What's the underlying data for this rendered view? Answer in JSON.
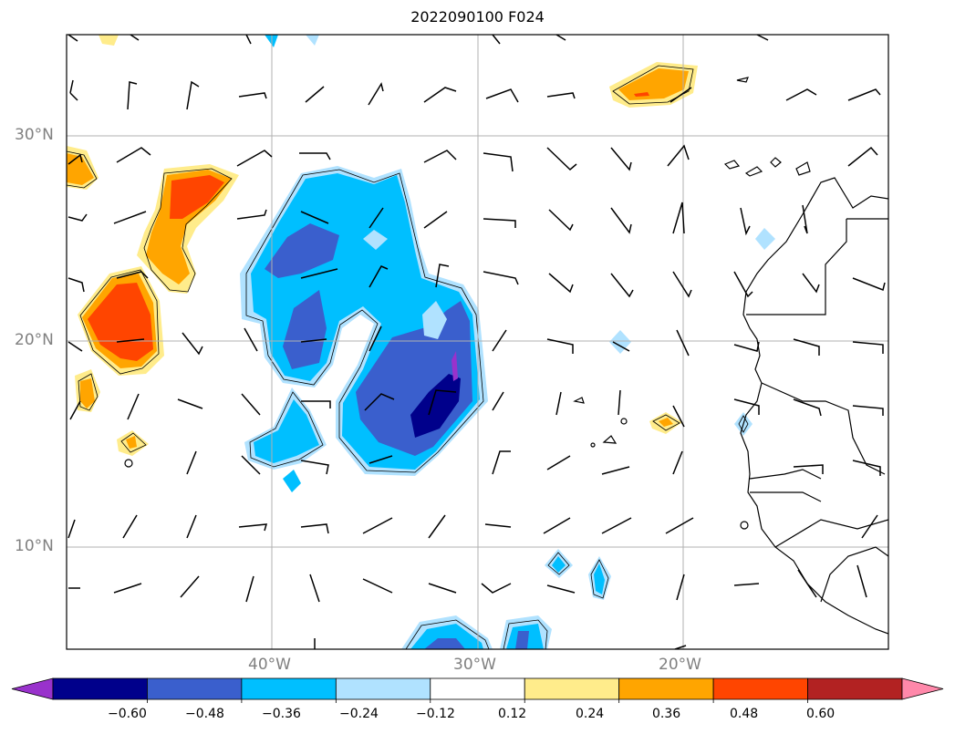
{
  "title": "2022090100 F024",
  "lat_labels": [
    "30°N",
    "20°N",
    "10°N"
  ],
  "lon_labels": [
    "40°W",
    "30°W",
    "20°W"
  ],
  "colorbar": {
    "ticks": [
      "−0.60",
      "−0.48",
      "−0.36",
      "−0.24",
      "−0.12",
      "0.12",
      "0.24",
      "0.36",
      "0.48",
      "0.60"
    ],
    "colors": [
      "#9932CC",
      "#00008B",
      "#3A5FCD",
      "#00BFFF",
      "#B0E2FF",
      "#FFFFFF",
      "#FFEC8B",
      "#FFA500",
      "#FF4500",
      "#B22222",
      "#FF88AA"
    ]
  },
  "map_colors": {
    "gridline": "#B0B0B0",
    "coastline": "#000000",
    "barb": "#000000"
  }
}
